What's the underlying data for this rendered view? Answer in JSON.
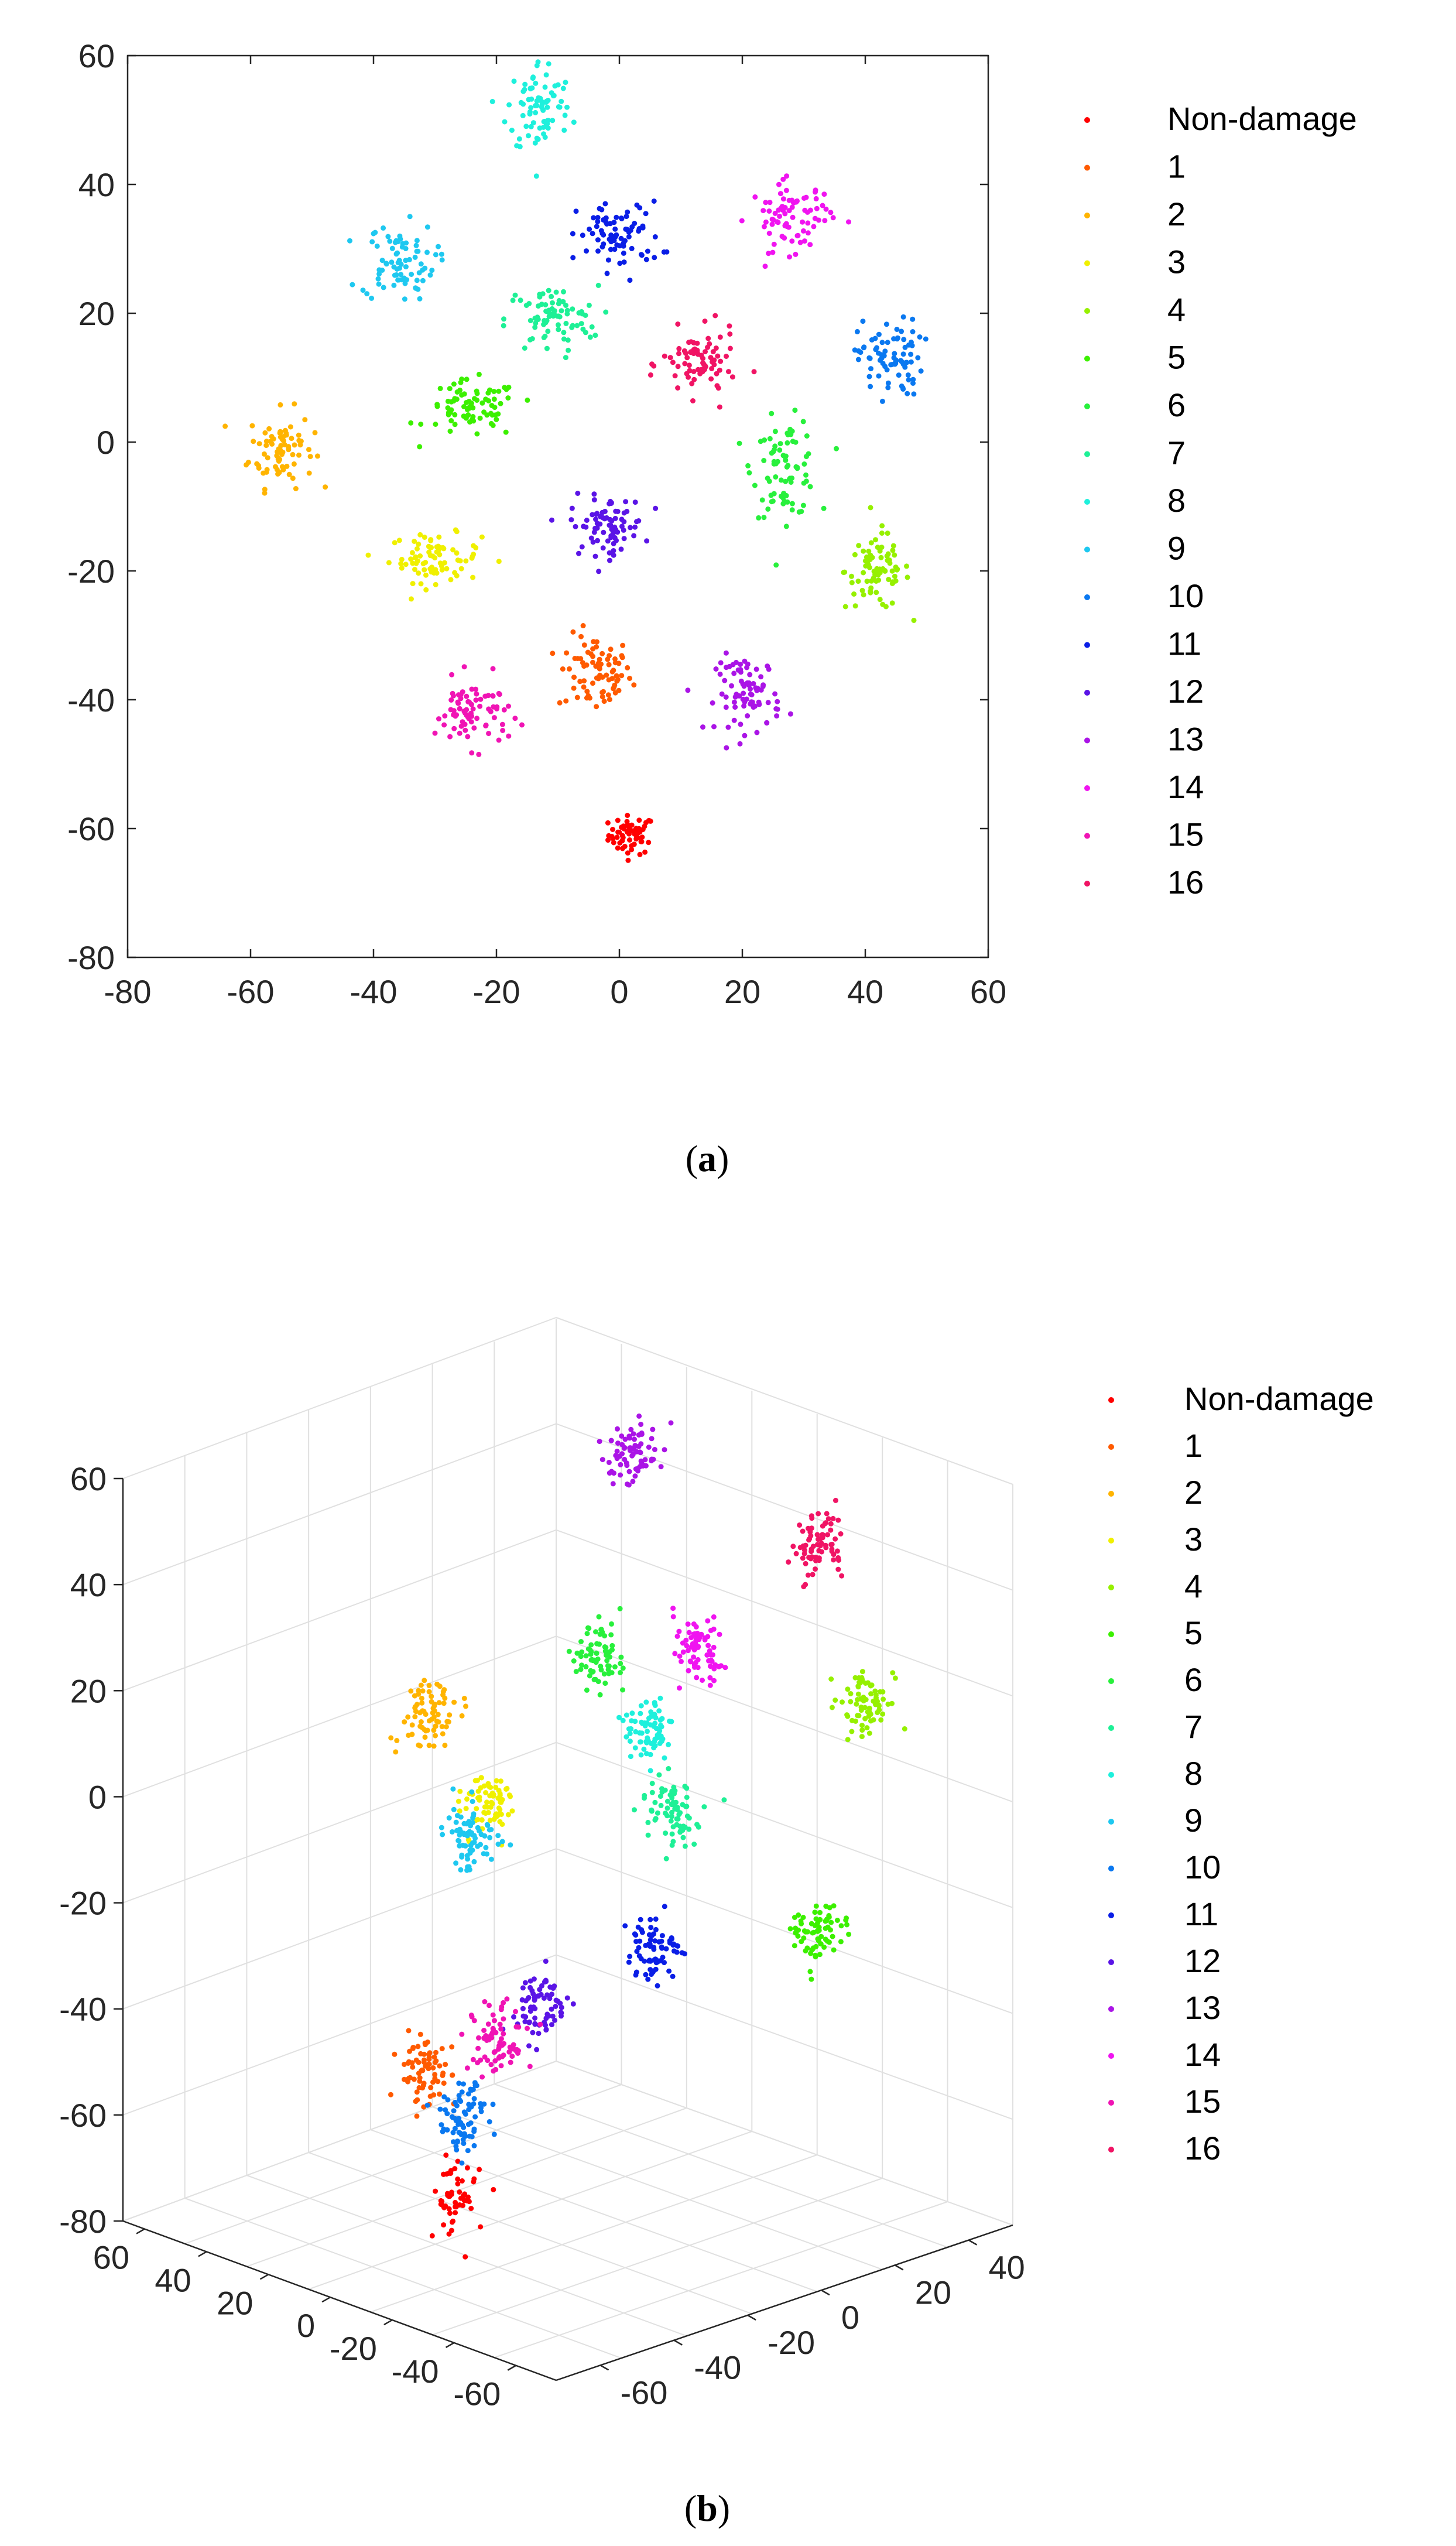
{
  "palette": [
    "#ff0000",
    "#ff5a00",
    "#ffb400",
    "#f0f000",
    "#96f000",
    "#3cf000",
    "#28f03c",
    "#1ef096",
    "#1ef0dc",
    "#1ec8f0",
    "#0a78f0",
    "#0a1ee6",
    "#5a14e6",
    "#aa14e6",
    "#f014f0",
    "#f014b4",
    "#f01464"
  ],
  "chart_data": [
    {
      "type": "scatter",
      "title": "",
      "caption": {
        "open": "(",
        "letter": "a",
        "close": ")"
      },
      "xlim": [
        -80,
        60
      ],
      "ylim": [
        -80,
        60
      ],
      "xticks": [
        "-80",
        "-60",
        "-40",
        "-20",
        "0",
        "20",
        "40",
        "60"
      ],
      "yticks": [
        "-80",
        "-60",
        "-40",
        "-20",
        "0",
        "20",
        "40",
        "60"
      ],
      "legend_position": "right",
      "series": [
        {
          "name": "Non-damage",
          "color": "#ff0000",
          "center": [
            2,
            -61
          ],
          "spread": [
            2.5,
            2
          ]
        },
        {
          "name": "1",
          "color": "#ff5a00",
          "center": [
            -4,
            -36
          ],
          "spread": [
            4,
            4
          ]
        },
        {
          "name": "2",
          "color": "#ffb400",
          "center": [
            -55,
            -1
          ],
          "spread": [
            3.5,
            4
          ]
        },
        {
          "name": "3",
          "color": "#f0f000",
          "center": [
            -30,
            -18
          ],
          "spread": [
            5,
            2.5
          ]
        },
        {
          "name": "4",
          "color": "#96f000",
          "center": [
            42,
            -20
          ],
          "spread": [
            3.5,
            4
          ]
        },
        {
          "name": "5",
          "color": "#3cf000",
          "center": [
            -24,
            5
          ],
          "spread": [
            5,
            3
          ]
        },
        {
          "name": "6",
          "color": "#28f03c",
          "center": [
            27,
            -4
          ],
          "spread": [
            3.5,
            5
          ]
        },
        {
          "name": "7",
          "color": "#1ef096",
          "center": [
            -11,
            19
          ],
          "spread": [
            5,
            3.5
          ]
        },
        {
          "name": "8",
          "color": "#1ef0dc",
          "center": [
            -13,
            52
          ],
          "spread": [
            3.5,
            5
          ]
        },
        {
          "name": "9",
          "color": "#1ec8f0",
          "center": [
            -36,
            28
          ],
          "spread": [
            4,
            4
          ]
        },
        {
          "name": "10",
          "color": "#0a78f0",
          "center": [
            44,
            13
          ],
          "spread": [
            3.5,
            4
          ]
        },
        {
          "name": "11",
          "color": "#0a1ee6",
          "center": [
            0,
            32
          ],
          "spread": [
            4.5,
            3.5
          ]
        },
        {
          "name": "12",
          "color": "#5a14e6",
          "center": [
            -2,
            -13
          ],
          "spread": [
            4,
            3
          ]
        },
        {
          "name": "13",
          "color": "#aa14e6",
          "center": [
            21,
            -39
          ],
          "spread": [
            3.5,
            4
          ]
        },
        {
          "name": "14",
          "color": "#f014f0",
          "center": [
            28,
            35
          ],
          "spread": [
            4.5,
            3.5
          ]
        },
        {
          "name": "15",
          "color": "#f014b4",
          "center": [
            -24,
            -42
          ],
          "spread": [
            4,
            3.5
          ]
        },
        {
          "name": "16",
          "color": "#f01464",
          "center": [
            13,
            12
          ],
          "spread": [
            4,
            3.5
          ]
        }
      ]
    },
    {
      "type": "scatter",
      "subtype": "3d-projection",
      "title": "",
      "caption": {
        "open": "(",
        "letter": "b",
        "close": ")"
      },
      "zlim": [
        -80,
        60
      ],
      "zticks": [
        "-80",
        "-60",
        "-40",
        "-20",
        "0",
        "20",
        "40",
        "60"
      ],
      "xticks_left": [
        "60",
        "40",
        "20",
        "0",
        "-20",
        "-40",
        "-60"
      ],
      "yticks_right": [
        "-60",
        "-40",
        "-20",
        "0",
        "20",
        "40"
      ],
      "legend_position": "right",
      "series": [
        {
          "name": "Non-damage",
          "color": "#ff0000",
          "center": [
            0,
            -37,
            -65
          ]
        },
        {
          "name": "1",
          "color": "#ff5a00",
          "center": [
            11,
            -36,
            -44
          ]
        },
        {
          "name": "2",
          "color": "#ffb400",
          "center": [
            43,
            -10,
            9
          ]
        },
        {
          "name": "3",
          "color": "#f0f000",
          "center": [
            24,
            -10,
            -3
          ]
        },
        {
          "name": "4",
          "color": "#96f000",
          "center": [
            -48,
            25,
            23
          ]
        },
        {
          "name": "5",
          "color": "#3cf000",
          "center": [
            -61,
            3,
            -12
          ]
        },
        {
          "name": "6",
          "color": "#28f03c",
          "center": [
            20,
            14,
            19
          ]
        },
        {
          "name": "7",
          "color": "#1ef096",
          "center": [
            -12,
            6,
            -1
          ]
        },
        {
          "name": "8",
          "color": "#1ef0dc",
          "center": [
            3,
            12,
            9
          ]
        },
        {
          "name": "9",
          "color": "#1ec8f0",
          "center": [
            33,
            -7,
            -12
          ]
        },
        {
          "name": "10",
          "color": "#0a78f0",
          "center": [
            -5,
            -39,
            -48
          ]
        },
        {
          "name": "11",
          "color": "#0a1ee6",
          "center": [
            -35,
            -17,
            -16
          ]
        },
        {
          "name": "12",
          "color": "#5a14e6",
          "center": [
            -12,
            -26,
            -29
          ]
        },
        {
          "name": "13",
          "color": "#aa14e6",
          "center": [
            30,
            30,
            51
          ]
        },
        {
          "name": "14",
          "color": "#f014f0",
          "center": [
            -5,
            18,
            25
          ]
        },
        {
          "name": "15",
          "color": "#f014b4",
          "center": [
            0,
            -27,
            -38
          ]
        },
        {
          "name": "16",
          "color": "#f01464",
          "center": [
            -20,
            35,
            43
          ]
        }
      ]
    }
  ]
}
